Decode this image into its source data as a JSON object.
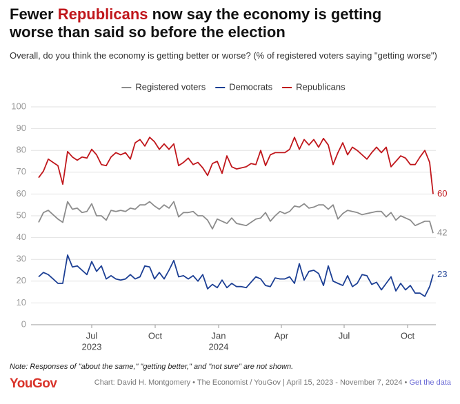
{
  "chart_data": {
    "type": "line",
    "title_parts": [
      "Fewer ",
      "Republicans",
      " now say the economy is getting worse than said so before the election"
    ],
    "title_highlight_color": "#c0161b",
    "subtitle": "Overall, do you think the economy is getting better or worse? (% of registered voters saying \"getting worse\")",
    "note": "Note: Responses of \"about the same,\" \"getting better,\" and \"not sure\" are not shown.",
    "logo": "YouGov",
    "source": "Chart: David H. Montgomery • The Economist / YouGov | April 15, 2023 - November 7, 2024 •",
    "data_link": "Get the data",
    "x": [
      "2023-04-15",
      "2023-04-22",
      "2023-04-29",
      "2023-05-06",
      "2023-05-13",
      "2023-05-20",
      "2023-05-27",
      "2023-06-03",
      "2023-06-10",
      "2023-06-17",
      "2023-06-24",
      "2023-07-01",
      "2023-07-08",
      "2023-07-15",
      "2023-07-22",
      "2023-07-29",
      "2023-08-05",
      "2023-08-12",
      "2023-08-19",
      "2023-08-26",
      "2023-09-02",
      "2023-09-09",
      "2023-09-16",
      "2023-09-23",
      "2023-09-30",
      "2023-10-07",
      "2023-10-14",
      "2023-10-21",
      "2023-10-28",
      "2023-11-04",
      "2023-11-11",
      "2023-11-18",
      "2023-11-25",
      "2023-12-02",
      "2023-12-09",
      "2023-12-16",
      "2023-12-23",
      "2023-12-30",
      "2024-01-06",
      "2024-01-13",
      "2024-01-20",
      "2024-01-27",
      "2024-02-03",
      "2024-02-10",
      "2024-02-17",
      "2024-02-24",
      "2024-03-02",
      "2024-03-09",
      "2024-03-16",
      "2024-03-23",
      "2024-03-30",
      "2024-04-06",
      "2024-04-13",
      "2024-04-20",
      "2024-04-27",
      "2024-05-04",
      "2024-05-11",
      "2024-05-18",
      "2024-05-25",
      "2024-06-01",
      "2024-06-08",
      "2024-06-15",
      "2024-06-22",
      "2024-06-29",
      "2024-07-06",
      "2024-07-13",
      "2024-07-20",
      "2024-07-27",
      "2024-08-03",
      "2024-08-10",
      "2024-08-17",
      "2024-08-24",
      "2024-08-31",
      "2024-09-07",
      "2024-09-14",
      "2024-09-21",
      "2024-09-28",
      "2024-10-05",
      "2024-10-12",
      "2024-10-19",
      "2024-10-26",
      "2024-11-02",
      "2024-11-07"
    ],
    "series": [
      {
        "name": "Registered voters",
        "color": "#8c8c8c",
        "values": [
          47,
          51.5,
          52.5,
          50.5,
          48.5,
          47,
          56.5,
          53,
          53.5,
          51.5,
          52,
          55.5,
          50,
          50,
          48,
          52.5,
          52,
          52.5,
          52,
          53.5,
          53,
          55,
          55,
          56.5,
          54.5,
          53,
          55,
          53.5,
          56.5,
          49.5,
          51.5,
          51.5,
          52,
          50,
          50,
          48,
          44,
          48.5,
          47.5,
          46.5,
          49,
          46.5,
          46,
          45.5,
          47,
          48.5,
          49,
          51.5,
          47.5,
          50,
          52,
          51,
          52,
          54.5,
          54,
          55.5,
          53.5,
          54,
          55,
          55,
          53,
          55,
          48.5,
          51,
          52.5,
          52,
          51.5,
          50.5,
          51,
          51.5,
          52,
          52,
          49.5,
          51.5,
          48,
          50,
          49,
          48,
          45.5,
          46.5,
          47.5,
          47.5,
          42
        ]
      },
      {
        "name": "Democrats",
        "color": "#1c3f94",
        "values": [
          22,
          24,
          23,
          21,
          19,
          19,
          32,
          26.5,
          27,
          25,
          23,
          29,
          24.5,
          27,
          21,
          22.5,
          21,
          20.5,
          21,
          23,
          21,
          22,
          27,
          26.5,
          21,
          24,
          21,
          25,
          29.5,
          22,
          22.5,
          21,
          22.5,
          20,
          23,
          16.5,
          18.5,
          17,
          20.5,
          17,
          19,
          17.5,
          17.5,
          17,
          19.5,
          22,
          21,
          18,
          17.5,
          21.5,
          21,
          21,
          22,
          19,
          28,
          20.5,
          24.5,
          25,
          23.5,
          18,
          27,
          20,
          19,
          18,
          22.5,
          17.5,
          19,
          23,
          22.5,
          18.5,
          19.5,
          16,
          19,
          22,
          15.5,
          19,
          16,
          18,
          14.5,
          14.5,
          13,
          17.5,
          23
        ]
      },
      {
        "name": "Republicans",
        "color": "#c0161b",
        "values": [
          67.5,
          70.5,
          76,
          74.5,
          73,
          64.5,
          79.5,
          77,
          75.5,
          77,
          76.5,
          80.5,
          78,
          73.5,
          73,
          77,
          79,
          78,
          79,
          76,
          83.5,
          85,
          82,
          86,
          84,
          80.5,
          83,
          80.5,
          83,
          73,
          74.5,
          76.5,
          73.5,
          74.5,
          72,
          68.5,
          74,
          75,
          69.5,
          77.5,
          72.5,
          71.5,
          72,
          72.5,
          74,
          73.5,
          80,
          73,
          78,
          79,
          79,
          79,
          80.5,
          86,
          80.5,
          85,
          82.5,
          85,
          81.5,
          85.5,
          82.5,
          73.5,
          79,
          83.5,
          78,
          81.5,
          80,
          78,
          76,
          79,
          81.5,
          79,
          81.5,
          72.5,
          75,
          77.5,
          76.5,
          73.5,
          73.5,
          77,
          80,
          74.5,
          60
        ]
      }
    ],
    "xlim": [
      "2023-04-04",
      "2024-11-11"
    ],
    "xticks": [
      {
        "value": "2023-07-01",
        "label": "Jul"
      },
      {
        "value": "2023-10-01",
        "label": "Oct"
      },
      {
        "value": "2024-01-01",
        "label": "Jan"
      },
      {
        "value": "2024-04-01",
        "label": "Apr"
      },
      {
        "value": "2024-07-01",
        "label": "Jul"
      },
      {
        "value": "2024-10-01",
        "label": "Oct"
      }
    ],
    "x_year_labels": [
      {
        "value": "2023-07-01",
        "label": "2023"
      },
      {
        "value": "2024-01-01",
        "label": "2024"
      }
    ],
    "ylim": [
      0,
      100
    ],
    "yticks": [
      0,
      10,
      20,
      30,
      40,
      50,
      60,
      70,
      80,
      90,
      100
    ],
    "grid": true,
    "legend": "top"
  }
}
